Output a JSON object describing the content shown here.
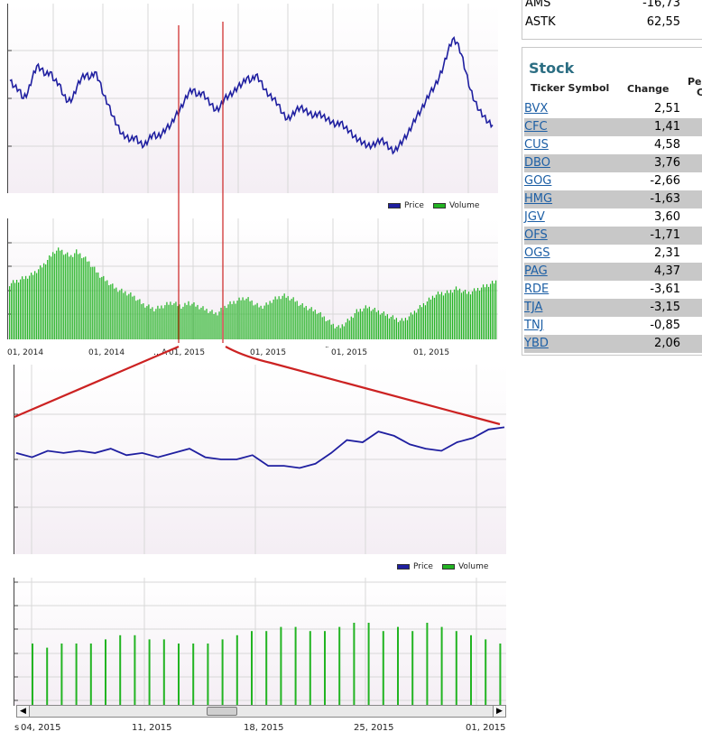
{
  "overview": {
    "price_chart": {
      "legend": {
        "price_label": "Price",
        "volume_label": "Volume",
        "price_color": "#1f1fa0",
        "volume_color": "#22b422"
      }
    },
    "x_ticks": [
      "01, 2014",
      "01, 2014",
      "01, 2015",
      "01, 2015",
      "01, 2015",
      "01, 2015"
    ],
    "partial_labels": {
      "left_fragment": "…A",
      "dots_fragment": "¨"
    }
  },
  "detail": {
    "legend": {
      "price_label": "Price",
      "volume_label": "Volume"
    },
    "x_ticks": [
      "04, 2015",
      "11, 2015",
      "18, 2015",
      "25, 2015",
      "01, 2015"
    ],
    "cut_prefix": "s"
  },
  "colors": {
    "price_line": "#1f1fa0",
    "volume_bar": "#22b422",
    "selection_line": "#cc2222",
    "stock_title": "#2c6e83",
    "link": "#1d5fa5"
  },
  "quotes_top": [
    {
      "symbol": "AMS",
      "value": "-16,73"
    },
    {
      "symbol": "ASTK",
      "value": "62,55"
    }
  ],
  "stock_panel": {
    "title": "Stock",
    "headers": {
      "ticker": "Ticker Symbol",
      "change": "Change",
      "percent_fragment": "Per",
      "percent_fragment2": "C"
    },
    "rows": [
      {
        "symbol": "BVX",
        "change": "2,51"
      },
      {
        "symbol": "CFC",
        "change": "1,41"
      },
      {
        "symbol": "CUS",
        "change": "4,58"
      },
      {
        "symbol": "DBO",
        "change": "3,76"
      },
      {
        "symbol": "GOG",
        "change": "-2,66"
      },
      {
        "symbol": "HMG",
        "change": "-1,63"
      },
      {
        "symbol": "JGV",
        "change": "3,60"
      },
      {
        "symbol": "OFS",
        "change": "-1,71"
      },
      {
        "symbol": "OGS",
        "change": "2,31"
      },
      {
        "symbol": "PAG",
        "change": "4,37"
      },
      {
        "symbol": "RDE",
        "change": "-3,61"
      },
      {
        "symbol": "TJA",
        "change": "-3,15"
      },
      {
        "symbol": "TNJ",
        "change": "-0,85"
      },
      {
        "symbol": "YBD",
        "change": "2,06"
      }
    ]
  },
  "chart_data": [
    {
      "type": "line",
      "series": [
        {
          "values": [
            70,
            66,
            64,
            58,
            62,
            72,
            80,
            78,
            74,
            76,
            70,
            68,
            60,
            56,
            58,
            66,
            72,
            74,
            72,
            76,
            70,
            60,
            54,
            46,
            40,
            34,
            32,
            30,
            32,
            28,
            26,
            30,
            34,
            32,
            34,
            38,
            40,
            46,
            50,
            56,
            62,
            64,
            60,
            62,
            58,
            54,
            50,
            52,
            58,
            60,
            62,
            66,
            68,
            72,
            70,
            74,
            70,
            64,
            60,
            58,
            54,
            48,
            44,
            46,
            50,
            52,
            50,
            48,
            46,
            48,
            46,
            44,
            42,
            40,
            42,
            38,
            36,
            32,
            30,
            28,
            26,
            26,
            28,
            30,
            28,
            24,
            22,
            26,
            30,
            34,
            40,
            46,
            50,
            56,
            62,
            66,
            72,
            80,
            90,
            98,
            96,
            88,
            76,
            64,
            56,
            50,
            46,
            42,
            40
          ]
        }
      ]
    },
    {
      "type": "bar",
      "series": [
        {
          "values": [
            48,
            50,
            52,
            54,
            56,
            60,
            64,
            70,
            76,
            78,
            74,
            72,
            76,
            72,
            68,
            62,
            56,
            52,
            48,
            44,
            42,
            40,
            38,
            34,
            30,
            28,
            26,
            28,
            30,
            32,
            30,
            28,
            32,
            30,
            28,
            26,
            24,
            22,
            26,
            30,
            32,
            34,
            36,
            34,
            30,
            28,
            30,
            34,
            36,
            38,
            36,
            34,
            30,
            28,
            26,
            24,
            20,
            16,
            12,
            10,
            14,
            18,
            24,
            26,
            28,
            26,
            24,
            22,
            20,
            18,
            16,
            18,
            22,
            26,
            30,
            34,
            38,
            40,
            40,
            42,
            44,
            42,
            40,
            42,
            44,
            46,
            48,
            50
          ]
        }
      ]
    },
    {
      "type": "line",
      "series": [
        {
          "values": [
            43,
            41,
            44,
            43,
            44,
            43,
            45,
            42,
            43,
            41,
            43,
            45,
            41,
            40,
            40,
            42,
            37,
            37,
            36,
            38,
            43,
            49,
            48,
            53,
            51,
            47,
            45,
            44,
            48,
            50,
            54,
            55
          ]
        }
      ]
    },
    {
      "type": "bar",
      "series": [
        {
          "values": [
            30,
            28,
            30,
            30,
            30,
            32,
            34,
            34,
            32,
            32,
            30,
            30,
            30,
            32,
            34,
            36,
            36,
            38,
            38,
            36,
            36,
            38,
            40,
            40,
            36,
            38,
            36,
            40,
            38,
            36,
            34,
            32,
            30,
            30
          ]
        }
      ]
    }
  ]
}
